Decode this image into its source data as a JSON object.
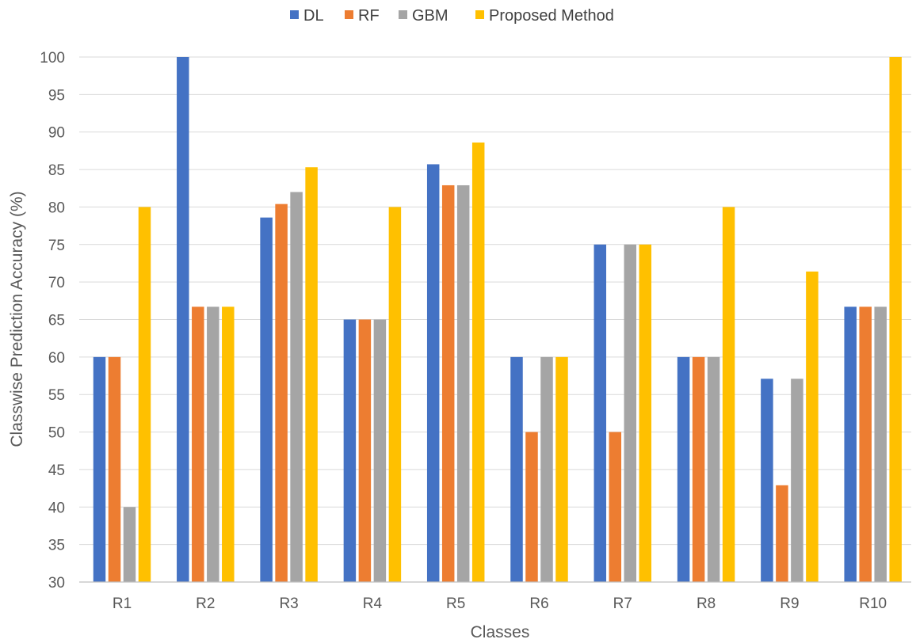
{
  "chart_data": {
    "type": "bar",
    "title": "",
    "xlabel": "Classes",
    "ylabel": "Classwise Prediction Accuracy (%)",
    "ylim": [
      30,
      100
    ],
    "yticks": [
      30,
      35,
      40,
      45,
      50,
      55,
      60,
      65,
      70,
      75,
      80,
      85,
      90,
      95,
      100
    ],
    "grid": "horizontal",
    "legend_position": "top-center",
    "categories": [
      "R1",
      "R2",
      "R3",
      "R4",
      "R5",
      "R6",
      "R7",
      "R8",
      "R9",
      "R10"
    ],
    "series": [
      {
        "name": "DL",
        "color": "#4472C4",
        "values": [
          60,
          100,
          78.6,
          65,
          85.7,
          60,
          75,
          60,
          57.1,
          66.7
        ]
      },
      {
        "name": "RF",
        "color": "#ED7D31",
        "values": [
          60,
          66.7,
          80.4,
          65,
          82.9,
          50,
          50,
          60,
          42.9,
          66.7
        ]
      },
      {
        "name": "GBM",
        "color": "#A5A5A5",
        "values": [
          40,
          66.7,
          82,
          65,
          82.9,
          60,
          75,
          60,
          57.1,
          66.7
        ]
      },
      {
        "name": "Proposed Method",
        "color": "#FFC000",
        "values": [
          80,
          66.7,
          85.3,
          80,
          88.6,
          60,
          75,
          80,
          71.4,
          100
        ]
      }
    ]
  }
}
